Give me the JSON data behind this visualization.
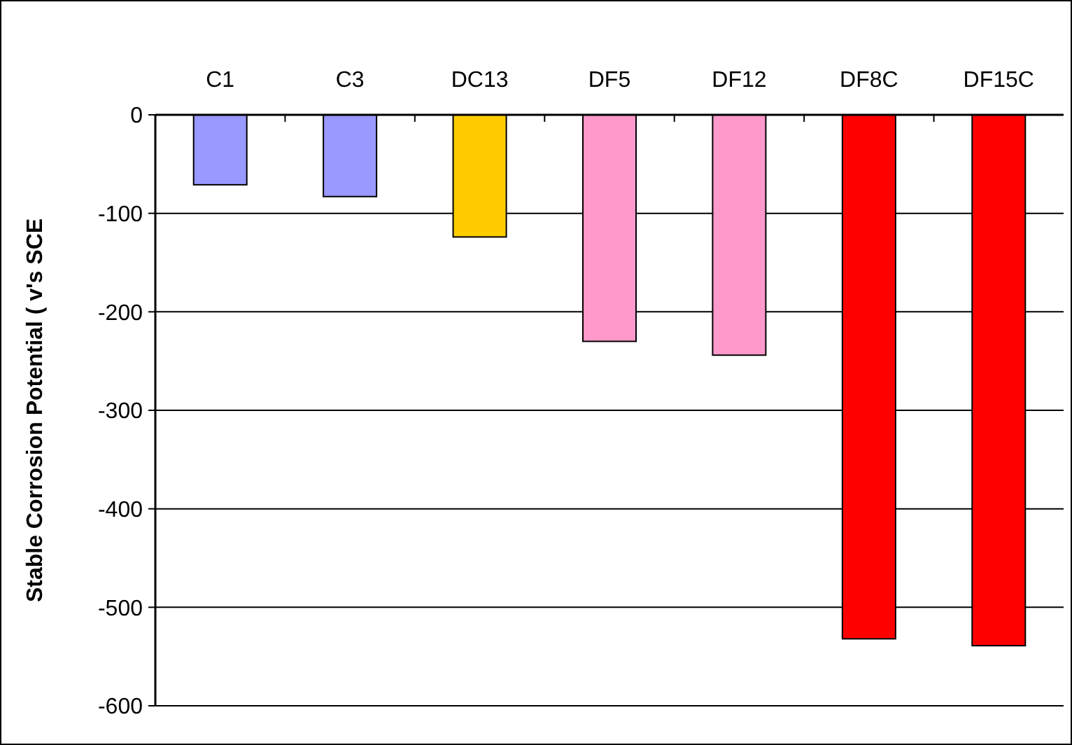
{
  "chart_data": {
    "type": "bar",
    "ylabel": "Stable Corrosion Potential ( v's SCE",
    "categories": [
      "C1",
      "C3",
      "DC13",
      "DF5",
      "DF12",
      "DF8C",
      "DF15C"
    ],
    "values": [
      -71,
      -83,
      -124,
      -230,
      -244,
      -532,
      -539
    ],
    "colors": [
      "#9999ff",
      "#9999ff",
      "#ffcc00",
      "#ff99cc",
      "#ff99cc",
      "#ff0000",
      "#ff0000"
    ],
    "ylim": [
      -600,
      0
    ],
    "yticks": [
      0,
      -100,
      -200,
      -300,
      -400,
      -500,
      -600
    ],
    "grid": "y"
  }
}
